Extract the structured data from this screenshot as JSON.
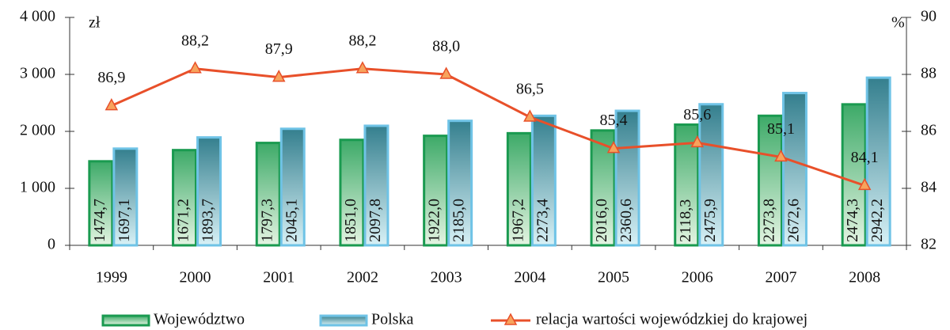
{
  "chart_data": {
    "type": "bar",
    "categories": [
      "1999",
      "2000",
      "2001",
      "2002",
      "2003",
      "2004",
      "2005",
      "2006",
      "2007",
      "2008"
    ],
    "ylabel": "zł",
    "y2label": "%",
    "ylim": [
      0,
      4000
    ],
    "yticks": [
      0,
      {
        "value": 1000,
        "label": "1 000"
      },
      {
        "value": 2000,
        "label": "2 000"
      },
      {
        "value": 3000,
        "label": "3 000"
      },
      {
        "value": 4000,
        "label": "4 000"
      }
    ],
    "y2lim": [
      82,
      90
    ],
    "y2ticks": [
      82,
      84,
      86,
      88,
      90
    ],
    "series": [
      {
        "name": "Województwo",
        "type": "bar",
        "color": "#1a9a50",
        "values": [
          1474.7,
          1671.2,
          1797.3,
          1851.0,
          1922.0,
          1967.2,
          2016.0,
          2118.3,
          2273.8,
          2474.3
        ],
        "value_labels": [
          "1474,7",
          "1671,2",
          "1797,3",
          "1851,0",
          "1922,0",
          "1967,2",
          "2016,0",
          "2118,3",
          "2273,8",
          "2474,3"
        ]
      },
      {
        "name": "Polska",
        "type": "bar",
        "color": "#6fc3e6",
        "values": [
          1697.1,
          1893.7,
          2045.1,
          2097.8,
          2185.0,
          2273.4,
          2360.6,
          2475.9,
          2672.6,
          2942.2
        ],
        "value_labels": [
          "1697,1",
          "1893,7",
          "2045,1",
          "2097,8",
          "2185,0",
          "2273,4",
          "2360,6",
          "2475,9",
          "2672,6",
          "2942,2"
        ]
      },
      {
        "name": "relacja wartości wojewódzkiej do krajowej",
        "type": "line",
        "axis": "y2",
        "color": "#e8502a",
        "values": [
          86.9,
          88.2,
          87.9,
          88.2,
          88.0,
          86.5,
          85.4,
          85.6,
          85.1,
          84.1
        ],
        "value_labels": [
          "86,9",
          "88,2",
          "87,9",
          "88,2",
          "88,0",
          "86,5",
          "85,4",
          "85,6",
          "85,1",
          "84,1"
        ]
      }
    ]
  }
}
